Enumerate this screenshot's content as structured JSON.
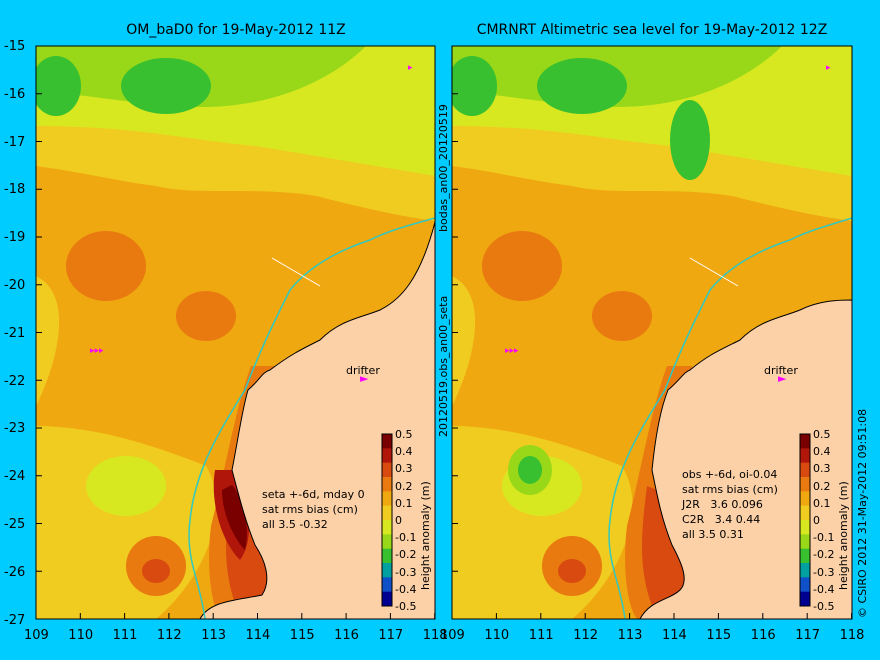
{
  "left_title": "OM_baD0 for 19-May-2012 11Z",
  "right_title": "CMRNRT Altimetric sea level  for 19-May-2012 12Z",
  "y_ticks": [
    "-15",
    "-16",
    "-17",
    "-18",
    "-19",
    "-20",
    "-21",
    "-22",
    "-23",
    "-24",
    "-25",
    "-26",
    "-27"
  ],
  "x_ticks": [
    "109",
    "110",
    "111",
    "112",
    "113",
    "114",
    "115",
    "116",
    "117",
    "118"
  ],
  "x_ticks_right": [
    "109",
    "110",
    "111",
    "112",
    "113",
    "114",
    "115",
    "116",
    "117",
    "118"
  ],
  "side_label_top": "bodas_an00_20120519",
  "side_label_bottom": "20120519.obs_an00_seta",
  "right_credit": "© CSIRO 2012   31-May-2012 09:51:08",
  "colorbar_label": "height anomaly (m)",
  "colorbar_ticks": [
    "0.5",
    "0.4",
    "0.3",
    "0.2",
    "0.1",
    "0",
    "-0.1",
    "-0.2",
    "-0.3",
    "-0.4",
    "-0.5"
  ],
  "colorbar_colors": [
    "#7a0000",
    "#b0160a",
    "#d84a10",
    "#e87a10",
    "#f0a810",
    "#f0cc20",
    "#d8e820",
    "#98d818",
    "#38c030",
    "#00a0a0",
    "#1050c8",
    "#000090"
  ],
  "left_note": "seta +-6d, mday 0\nsat rms bias (cm)\nall 3.5 -0.32",
  "right_note": "obs +-6d, oi-0.04\nsat rms bias (cm)\nJ2R   3.6 0.096\nC2R   3.4 0.44\nall 3.5 0.31",
  "drifter_label": "drifter",
  "land_color": "#fcd1a8"
}
